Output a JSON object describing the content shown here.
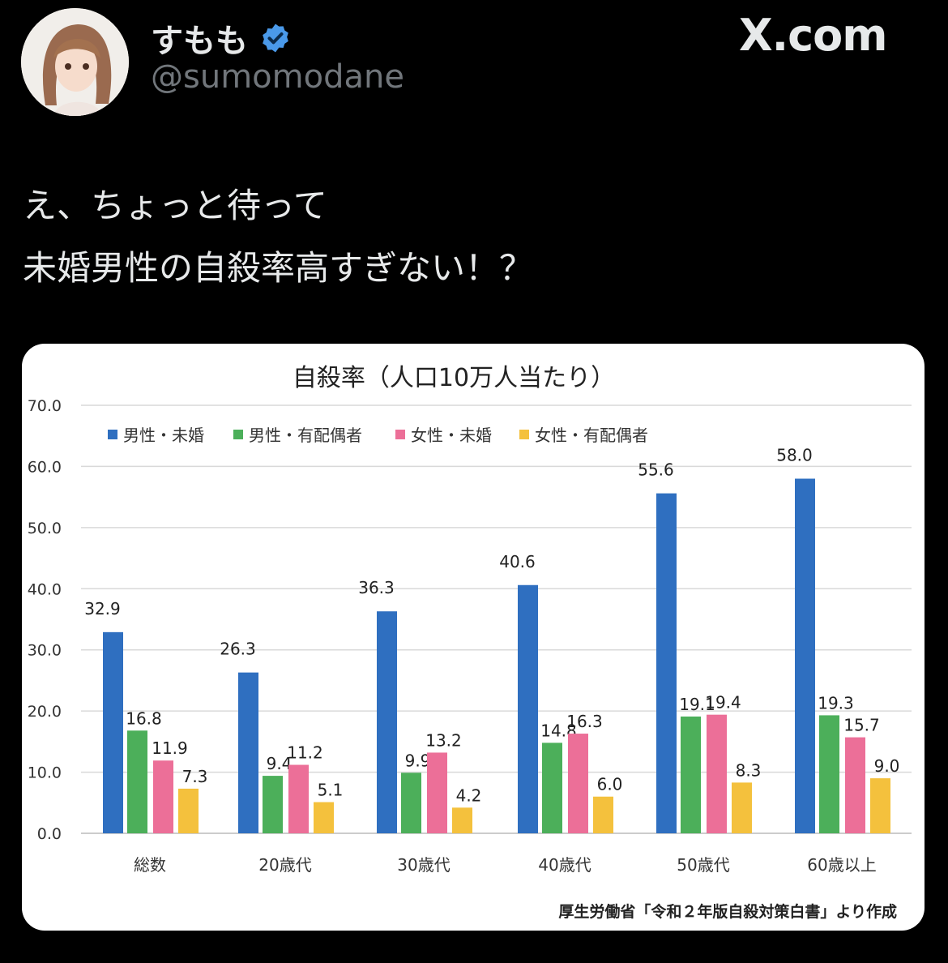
{
  "post": {
    "display_name": "すもも",
    "verified_icon": "verified-badge-icon",
    "handle": "@sumomodane",
    "site_label": "X.com",
    "text_lines": [
      "え、ちょっと待って",
      "未婚男性の自殺率高すぎない！？"
    ]
  },
  "chart_data": {
    "type": "bar",
    "title": "自殺率（人口10万人当たり）",
    "categories": [
      "総数",
      "20歳代",
      "30歳代",
      "40歳代",
      "50歳代",
      "60歳以上"
    ],
    "series": [
      {
        "name": "男性・未婚",
        "color": "#2f6fc0",
        "values": [
          32.9,
          26.3,
          36.3,
          40.6,
          55.6,
          58.0
        ]
      },
      {
        "name": "男性・有配偶者",
        "color": "#4caf5a",
        "values": [
          16.8,
          9.4,
          9.9,
          14.8,
          19.1,
          19.3
        ]
      },
      {
        "name": "女性・未婚",
        "color": "#ec6f98",
        "values": [
          11.9,
          11.2,
          13.2,
          16.3,
          19.4,
          15.7
        ]
      },
      {
        "name": "女性・有配偶者",
        "color": "#f4c13d",
        "values": [
          7.3,
          5.1,
          4.2,
          6.0,
          8.3,
          9.0
        ]
      }
    ],
    "y_ticks": [
      "0.0",
      "10.0",
      "20.0",
      "30.0",
      "40.0",
      "50.0",
      "60.0",
      "70.0"
    ],
    "ylim": [
      0,
      70
    ],
    "grid": true,
    "legend_position": "top",
    "source": "厚生労働省「令和２年版自殺対策白書」より作成"
  }
}
